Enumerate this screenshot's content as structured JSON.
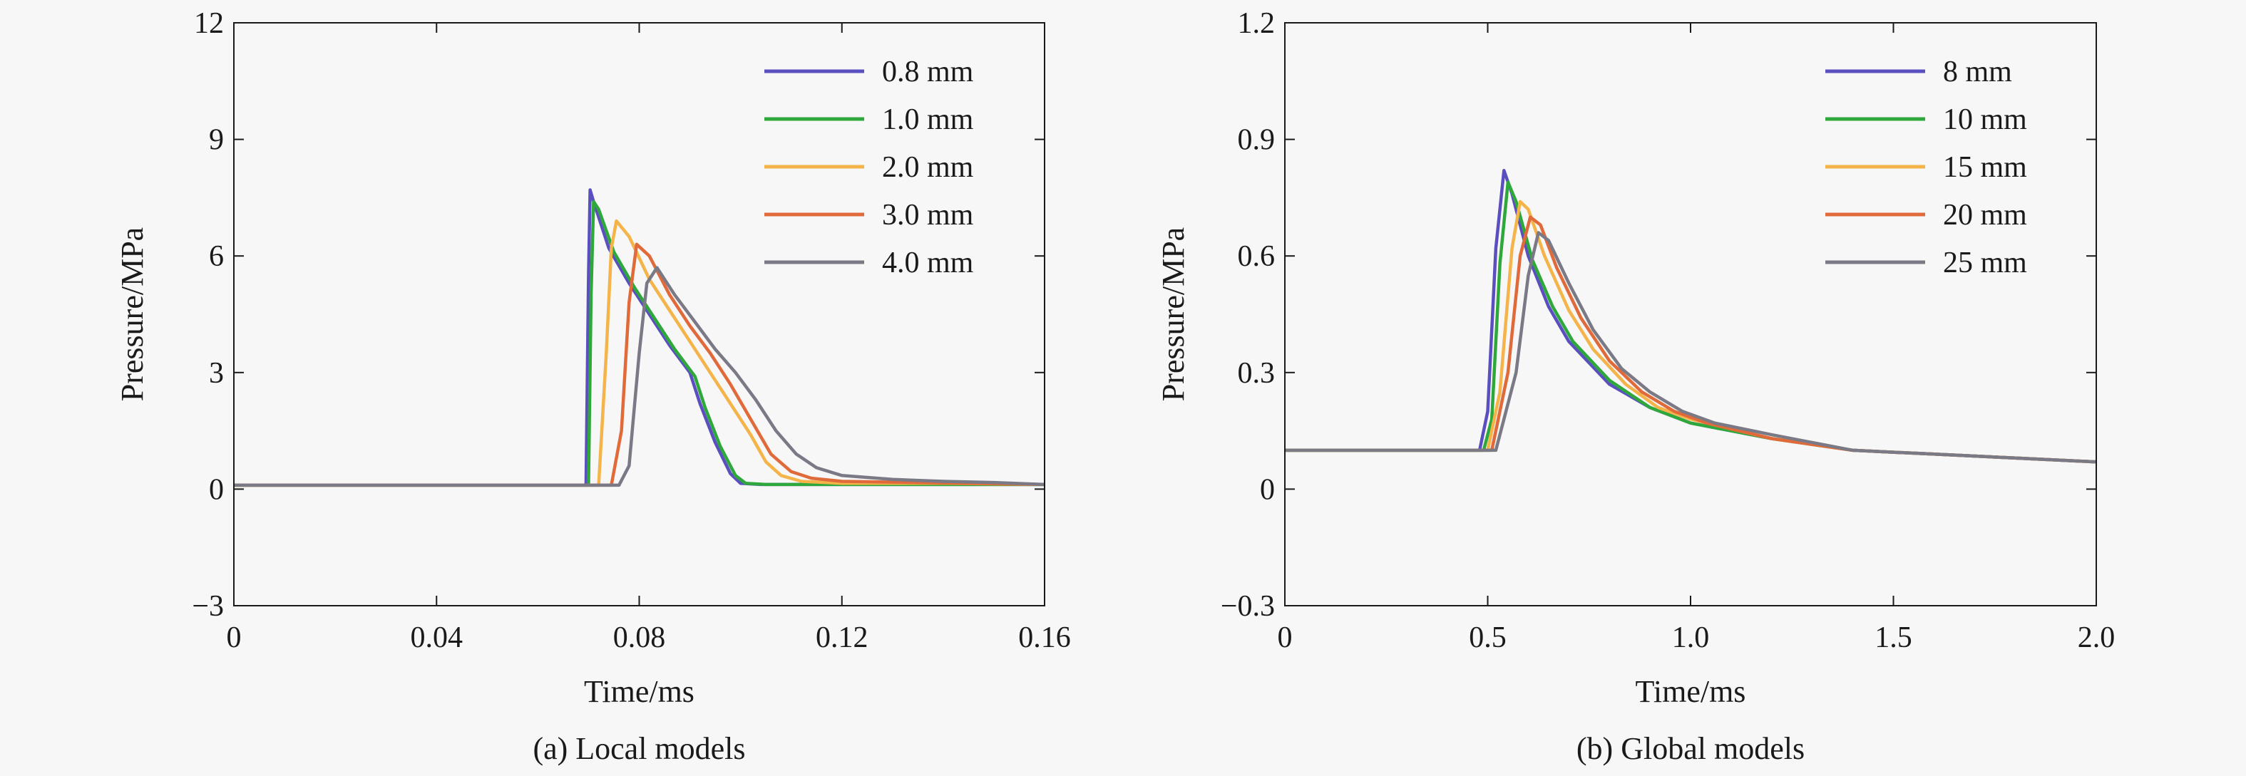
{
  "chart_data": [
    {
      "type": "line",
      "caption": "(a) Local models",
      "xlabel": "Time/ms",
      "ylabel": "Pressure/MPa",
      "xlim": [
        0,
        0.16
      ],
      "ylim": [
        -3,
        12
      ],
      "xticks": [
        0,
        0.04,
        0.08,
        0.12,
        0.16
      ],
      "xtick_labels": [
        "0",
        "0.04",
        "0.08",
        "0.12",
        "0.16"
      ],
      "yticks": [
        -3,
        0,
        3,
        6,
        9,
        12
      ],
      "ytick_labels": [
        "−3",
        "0",
        "3",
        "6",
        "9",
        "12"
      ],
      "grid": false,
      "legend_position": "top-right",
      "series": [
        {
          "name": "0.8 mm",
          "color": "#5a4fbf",
          "x": [
            0,
            0.0695,
            0.07,
            0.0703,
            0.071,
            0.074,
            0.078,
            0.082,
            0.086,
            0.09,
            0.092,
            0.095,
            0.098,
            0.1,
            0.104,
            0.11,
            0.12,
            0.13,
            0.14,
            0.16
          ],
          "y": [
            0.1,
            0.1,
            5.5,
            7.7,
            7.4,
            6.2,
            5.3,
            4.5,
            3.7,
            3.0,
            2.2,
            1.2,
            0.4,
            0.15,
            0.12,
            0.12,
            0.12,
            0.12,
            0.12,
            0.12
          ]
        },
        {
          "name": "1.0 mm",
          "color": "#2ea83a",
          "x": [
            0,
            0.07,
            0.0705,
            0.071,
            0.072,
            0.075,
            0.079,
            0.083,
            0.087,
            0.091,
            0.093,
            0.096,
            0.099,
            0.101,
            0.105,
            0.11,
            0.12,
            0.13,
            0.14,
            0.16
          ],
          "y": [
            0.1,
            0.1,
            5.0,
            7.4,
            7.2,
            6.1,
            5.2,
            4.4,
            3.6,
            2.9,
            2.1,
            1.1,
            0.35,
            0.15,
            0.12,
            0.12,
            0.12,
            0.12,
            0.12,
            0.12
          ]
        },
        {
          "name": "2.0 mm",
          "color": "#f4b44a",
          "x": [
            0,
            0.072,
            0.0735,
            0.0745,
            0.0755,
            0.078,
            0.082,
            0.086,
            0.09,
            0.094,
            0.098,
            0.102,
            0.105,
            0.108,
            0.112,
            0.12,
            0.13,
            0.14,
            0.16
          ],
          "y": [
            0.1,
            0.1,
            3.5,
            6.2,
            6.9,
            6.5,
            5.4,
            4.6,
            3.8,
            3.0,
            2.2,
            1.4,
            0.7,
            0.35,
            0.2,
            0.15,
            0.15,
            0.15,
            0.12
          ]
        },
        {
          "name": "3.0 mm",
          "color": "#e06a3a",
          "x": [
            0,
            0.0745,
            0.0765,
            0.078,
            0.0795,
            0.082,
            0.086,
            0.09,
            0.094,
            0.098,
            0.102,
            0.106,
            0.11,
            0.114,
            0.12,
            0.13,
            0.14,
            0.16
          ],
          "y": [
            0.1,
            0.1,
            1.5,
            4.8,
            6.3,
            6.0,
            5.0,
            4.2,
            3.5,
            2.7,
            1.8,
            0.9,
            0.45,
            0.28,
            0.2,
            0.18,
            0.16,
            0.12
          ]
        },
        {
          "name": "4.0 mm",
          "color": "#7a7a86",
          "x": [
            0,
            0.076,
            0.078,
            0.08,
            0.0815,
            0.0835,
            0.087,
            0.091,
            0.095,
            0.099,
            0.103,
            0.107,
            0.111,
            0.115,
            0.12,
            0.13,
            0.14,
            0.15,
            0.16
          ],
          "y": [
            0.1,
            0.1,
            0.6,
            3.5,
            5.3,
            5.7,
            5.0,
            4.3,
            3.6,
            3.0,
            2.3,
            1.5,
            0.9,
            0.55,
            0.35,
            0.25,
            0.2,
            0.17,
            0.12
          ]
        }
      ]
    },
    {
      "type": "line",
      "caption": "(b) Global models",
      "xlabel": "Time/ms",
      "ylabel": "Pressure/MPa",
      "xlim": [
        0,
        2.0
      ],
      "ylim": [
        -0.3,
        1.2
      ],
      "xticks": [
        0,
        0.5,
        1.0,
        1.5,
        2.0
      ],
      "xtick_labels": [
        "0",
        "0.5",
        "1.0",
        "1.5",
        "2.0"
      ],
      "yticks": [
        -0.3,
        0,
        0.3,
        0.6,
        0.9,
        1.2
      ],
      "ytick_labels": [
        "−0.3",
        "0",
        "0.3",
        "0.6",
        "0.9",
        "1.2"
      ],
      "grid": false,
      "legend_position": "top-right",
      "series": [
        {
          "name": "8 mm",
          "color": "#5a4fbf",
          "x": [
            0,
            0.48,
            0.5,
            0.52,
            0.54,
            0.56,
            0.6,
            0.65,
            0.7,
            0.8,
            0.9,
            1.0,
            1.2,
            1.4,
            1.6,
            1.8,
            2.0
          ],
          "y": [
            0.1,
            0.1,
            0.2,
            0.62,
            0.82,
            0.76,
            0.6,
            0.47,
            0.38,
            0.27,
            0.21,
            0.17,
            0.13,
            0.1,
            0.09,
            0.08,
            0.07
          ]
        },
        {
          "name": "10 mm",
          "color": "#2ea83a",
          "x": [
            0,
            0.49,
            0.51,
            0.53,
            0.55,
            0.57,
            0.61,
            0.66,
            0.71,
            0.8,
            0.9,
            1.0,
            1.2,
            1.4,
            1.6,
            1.8,
            2.0
          ],
          "y": [
            0.1,
            0.1,
            0.18,
            0.58,
            0.79,
            0.74,
            0.59,
            0.47,
            0.38,
            0.28,
            0.21,
            0.17,
            0.13,
            0.1,
            0.09,
            0.08,
            0.07
          ]
        },
        {
          "name": "15 mm",
          "color": "#f4b44a",
          "x": [
            0,
            0.5,
            0.53,
            0.56,
            0.58,
            0.6,
            0.64,
            0.7,
            0.76,
            0.84,
            0.92,
            1.0,
            1.2,
            1.4,
            1.6,
            1.8,
            2.0
          ],
          "y": [
            0.1,
            0.1,
            0.25,
            0.62,
            0.74,
            0.72,
            0.6,
            0.46,
            0.36,
            0.27,
            0.21,
            0.18,
            0.13,
            0.1,
            0.09,
            0.08,
            0.07
          ]
        },
        {
          "name": "20 mm",
          "color": "#e06a3a",
          "x": [
            0,
            0.51,
            0.55,
            0.58,
            0.605,
            0.63,
            0.67,
            0.73,
            0.8,
            0.88,
            0.96,
            1.04,
            1.2,
            1.4,
            1.6,
            1.8,
            2.0
          ],
          "y": [
            0.1,
            0.1,
            0.3,
            0.6,
            0.7,
            0.68,
            0.57,
            0.44,
            0.33,
            0.25,
            0.2,
            0.17,
            0.13,
            0.1,
            0.09,
            0.08,
            0.07
          ]
        },
        {
          "name": "25 mm",
          "color": "#7a7a86",
          "x": [
            0,
            0.52,
            0.57,
            0.6,
            0.625,
            0.65,
            0.7,
            0.76,
            0.83,
            0.9,
            0.98,
            1.06,
            1.2,
            1.4,
            1.6,
            1.8,
            2.0
          ],
          "y": [
            0.1,
            0.1,
            0.3,
            0.55,
            0.66,
            0.64,
            0.53,
            0.41,
            0.31,
            0.25,
            0.2,
            0.17,
            0.14,
            0.1,
            0.09,
            0.08,
            0.07
          ]
        }
      ]
    }
  ]
}
